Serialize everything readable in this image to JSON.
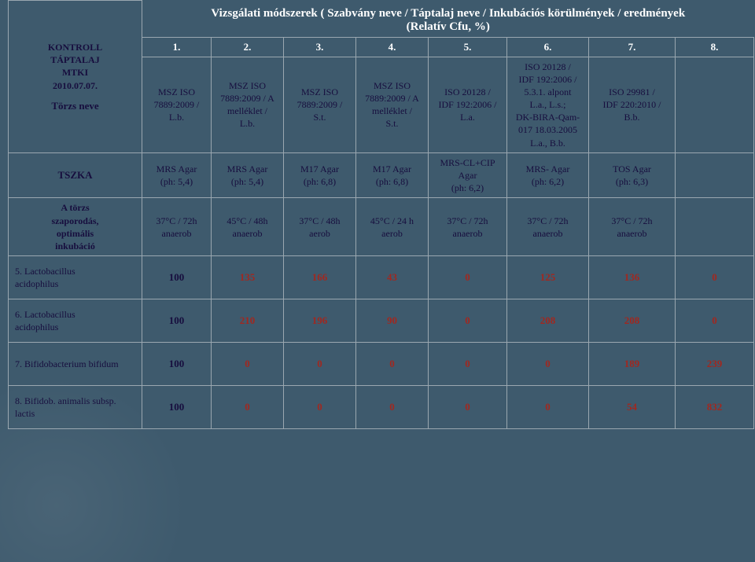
{
  "header": {
    "title_l1": "Vizsgálati módszerek ( Szabvány neve / Táptalaj neve / Inkubációs körülmények / eredmények",
    "title_l2": "(Relatív Cfu, %)",
    "col_nums": [
      "1.",
      "2.",
      "3.",
      "4.",
      "5.",
      "6.",
      "7.",
      "8."
    ]
  },
  "left": {
    "torzs_neve": "Törzs neve",
    "kontroll": "KONTROLL\nTÁPTALAJ\nMTKI\n2010.07.07.",
    "tszka": "TSZKA",
    "atorzs": "A törzs\nszaporodás,\noptimális\ninkubáció"
  },
  "methods": {
    "c1": "MSZ ISO\n7889:2009 /\nL.b.",
    "c2": "MSZ ISO\n7889:2009 / A\nmelléklet /\nL.b.",
    "c3": "MSZ ISO\n7889:2009 /\nS.t.",
    "c4": "MSZ ISO\n7889:2009 / A\nmelléklet /\nS.t.",
    "c5": "ISO 20128 /\nIDF 192:2006 /\nL.a.",
    "c6": "ISO 20128 /\nIDF 192:2006 /\n5.3.1. alpont\nL.a., L.s.;\nDK-BIRA-Qam-\n017 18.03.2005\nL.a., B.b.",
    "c7": "ISO 29981 /\nIDF 220:2010 /\nB.b."
  },
  "media": {
    "c1": "MRS Agar\n(ph: 5,4)",
    "c2": "MRS Agar\n(ph: 5,4)",
    "c3": "M17 Agar\n(ph: 6,8)",
    "c4": "M17 Agar\n(ph: 6,8)",
    "c5": "MRS-CL+CIP\nAgar\n(ph: 6,2)",
    "c6": "MRS- Agar\n(ph: 6,2)",
    "c7": "TOS Agar\n(ph: 6,3)"
  },
  "incub": {
    "c1": "37°C / 72h\nanaerob",
    "c2": "45°C / 48h\nanaerob",
    "c3": "37°C / 48h\naerob",
    "c4": "45°C / 24 h\naerob",
    "c5": "37°C / 72h\nanaerob",
    "c6": "37°C / 72h\nanaerob",
    "c7": "37°C / 72h\nanaerob"
  },
  "rows": [
    {
      "label": "5. Lactobacillus\nacidophilus",
      "v": [
        "100",
        "135",
        "166",
        "43",
        "0",
        "125",
        "136",
        "0"
      ]
    },
    {
      "label": "6. Lactobacillus\nacidophilus",
      "v": [
        "100",
        "210",
        "196",
        "90",
        "0",
        "208",
        "208",
        "0"
      ]
    },
    {
      "label": "7. Bifidobacterium bifidum",
      "v": [
        "100",
        "0",
        "0",
        "0",
        "0",
        "0",
        "189",
        "239"
      ]
    },
    {
      "label": "8. Bifidob. animalis subsp.\nlactis",
      "v": [
        "100",
        "0",
        "0",
        "0",
        "0",
        "0",
        "54",
        "832"
      ]
    }
  ],
  "colors": {
    "bg": "#3e5a6d",
    "border": "#9aa7b0",
    "white": "#ffffff",
    "dark": "#170e3e",
    "red": "#a02820"
  }
}
